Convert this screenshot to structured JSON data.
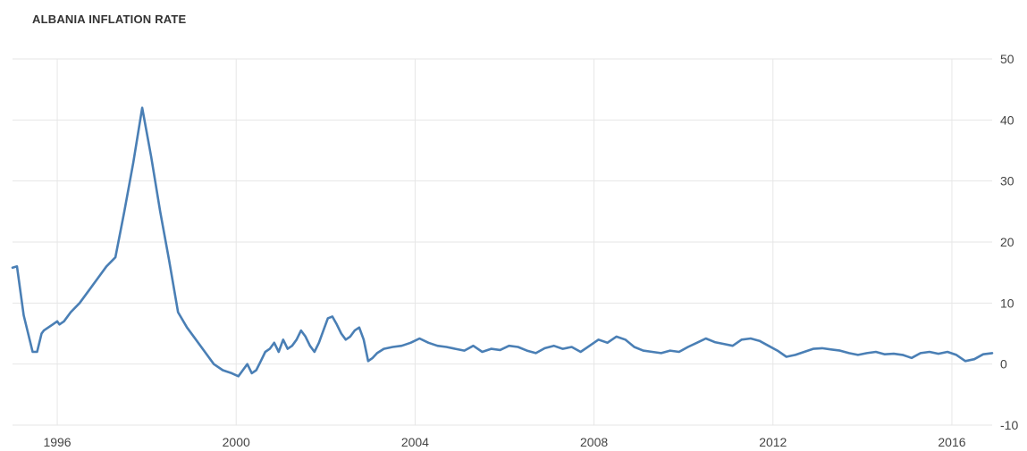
{
  "chart_data": {
    "type": "line",
    "title": "ALBANIA INFLATION RATE",
    "xlabel": "",
    "ylabel": "",
    "ylim": [
      -10,
      50
    ],
    "xlim": [
      1995.0,
      2016.9
    ],
    "yticks": [
      50,
      40,
      30,
      20,
      10,
      0,
      -10
    ],
    "xticks": [
      "1996",
      "2000",
      "2004",
      "2008",
      "2012",
      "2016"
    ],
    "grid": true,
    "y_axis_side": "right",
    "line_color": "#4a7fb5",
    "series": [
      {
        "name": "",
        "x": [
          1995.0,
          1995.1,
          1995.25,
          1995.35,
          1995.45,
          1995.55,
          1995.65,
          1995.7,
          1995.8,
          1995.9,
          1996.0,
          1996.05,
          1996.15,
          1996.3,
          1996.5,
          1996.7,
          1996.9,
          1997.1,
          1997.3,
          1997.5,
          1997.7,
          1997.9,
          1998.1,
          1998.3,
          1998.5,
          1998.7,
          1998.9,
          1999.1,
          1999.3,
          1999.5,
          1999.7,
          1999.9,
          2000.05,
          2000.15,
          2000.25,
          2000.35,
          2000.45,
          2000.55,
          2000.65,
          2000.75,
          2000.85,
          2000.95,
          2001.05,
          2001.15,
          2001.25,
          2001.35,
          2001.45,
          2001.55,
          2001.65,
          2001.75,
          2001.85,
          2001.95,
          2002.05,
          2002.15,
          2002.25,
          2002.35,
          2002.45,
          2002.55,
          2002.65,
          2002.75,
          2002.85,
          2002.95,
          2003.05,
          2003.15,
          2003.3,
          2003.5,
          2003.7,
          2003.9,
          2004.1,
          2004.3,
          2004.5,
          2004.7,
          2004.9,
          2005.1,
          2005.3,
          2005.5,
          2005.7,
          2005.9,
          2006.1,
          2006.3,
          2006.5,
          2006.7,
          2006.9,
          2007.1,
          2007.3,
          2007.5,
          2007.7,
          2007.9,
          2008.1,
          2008.3,
          2008.5,
          2008.7,
          2008.9,
          2009.1,
          2009.3,
          2009.5,
          2009.7,
          2009.9,
          2010.1,
          2010.3,
          2010.5,
          2010.7,
          2010.9,
          2011.1,
          2011.3,
          2011.5,
          2011.7,
          2011.9,
          2012.1,
          2012.3,
          2012.5,
          2012.7,
          2012.9,
          2013.1,
          2013.3,
          2013.5,
          2013.7,
          2013.9,
          2014.1,
          2014.3,
          2014.5,
          2014.7,
          2014.9,
          2015.1,
          2015.3,
          2015.5,
          2015.7,
          2015.9,
          2016.1,
          2016.3,
          2016.5,
          2016.7,
          2016.9
        ],
        "y": [
          15.8,
          16.0,
          8.0,
          5.0,
          2.0,
          2.0,
          5.0,
          5.5,
          6.0,
          6.5,
          7.0,
          6.5,
          7.0,
          8.5,
          10.0,
          12.0,
          14.0,
          16.0,
          17.5,
          25.0,
          33.0,
          42.0,
          34.0,
          25.0,
          17.0,
          8.5,
          6.0,
          4.0,
          2.0,
          0.0,
          -1.0,
          -1.5,
          -2.0,
          -1.0,
          0.0,
          -1.5,
          -1.0,
          0.5,
          2.0,
          2.5,
          3.5,
          2.0,
          4.0,
          2.5,
          3.0,
          4.0,
          5.5,
          4.5,
          3.0,
          2.0,
          3.5,
          5.5,
          7.5,
          7.8,
          6.5,
          5.0,
          4.0,
          4.5,
          5.5,
          6.0,
          4.0,
          0.5,
          1.0,
          1.8,
          2.5,
          2.8,
          3.0,
          3.5,
          4.2,
          3.5,
          3.0,
          2.8,
          2.5,
          2.2,
          3.0,
          2.0,
          2.5,
          2.3,
          3.0,
          2.8,
          2.2,
          1.8,
          2.6,
          3.0,
          2.5,
          2.8,
          2.0,
          3.0,
          4.0,
          3.5,
          4.5,
          4.0,
          2.8,
          2.2,
          2.0,
          1.8,
          2.2,
          2.0,
          2.8,
          3.5,
          4.2,
          3.6,
          3.3,
          3.0,
          4.0,
          4.2,
          3.8,
          3.0,
          2.2,
          1.2,
          1.5,
          2.0,
          2.5,
          2.6,
          2.4,
          2.2,
          1.8,
          1.5,
          1.8,
          2.0,
          1.6,
          1.7,
          1.5,
          1.0,
          1.8,
          2.0,
          1.7,
          2.0,
          1.5,
          0.5,
          0.8,
          1.6,
          1.8
        ]
      }
    ]
  }
}
